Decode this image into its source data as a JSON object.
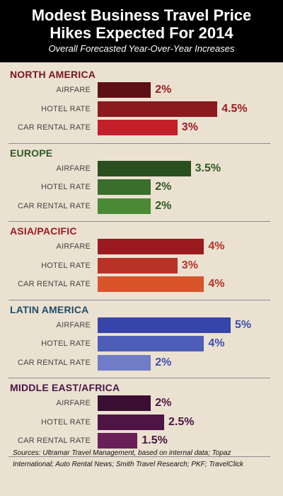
{
  "title_line1": "Modest Business Travel Price",
  "title_line2": "Hikes Expected For 2014",
  "subtitle": "Overall Forecasted Year-Over-Year Increases",
  "chart_data": {
    "type": "bar",
    "orientation": "horizontal",
    "unit": "%",
    "categories": [
      "AIRFARE",
      "HOTEL RATE",
      "CAR RENTAL RATE"
    ],
    "groups": [
      {
        "region": "NORTH AMERICA",
        "region_color": "#7a1520",
        "values": [
          2,
          4.5,
          3
        ],
        "labels": [
          "2%",
          "4.5%",
          "3%"
        ],
        "colors": [
          "#5e0e15",
          "#8a1a1e",
          "#c21f2a"
        ],
        "label_color": "#9c1b1f"
      },
      {
        "region": "EUROPE",
        "region_color": "#2e5a22",
        "values": [
          3.5,
          2,
          2
        ],
        "labels": [
          "3.5%",
          "2%",
          "2%"
        ],
        "colors": [
          "#2a4f1e",
          "#3a6e2b",
          "#4a8a35"
        ],
        "label_color": "#2e5a22"
      },
      {
        "region": "ASIA/PACIFIC",
        "region_color": "#9a1c22",
        "values": [
          4,
          3,
          4
        ],
        "labels": [
          "4%",
          "3%",
          "4%"
        ],
        "colors": [
          "#9a1a1f",
          "#b83228",
          "#d9542a"
        ],
        "label_color": "#b83228"
      },
      {
        "region": "LATIN AMERICA",
        "region_color": "#1f4e69",
        "values": [
          5,
          4,
          2
        ],
        "labels": [
          "5%",
          "4%",
          "2%"
        ],
        "colors": [
          "#3745a8",
          "#4d5db8",
          "#6f7dc7"
        ],
        "label_color": "#3f4fae"
      },
      {
        "region": "MIDDLE EAST/AFRICA",
        "region_color": "#4a1545",
        "values": [
          2,
          2.5,
          1.5
        ],
        "labels": [
          "2%",
          "2.5%",
          "1.5%"
        ],
        "colors": [
          "#3a0f33",
          "#4d1444",
          "#6a1f58"
        ],
        "label_color": "#4a1545"
      }
    ],
    "xlim": [
      0,
      5
    ]
  },
  "sources": "Sources: Ultramar Travel Management, based on internal data; Topaz International; Auto Rental News; Smith Travel Research; PKF; TravelClick"
}
